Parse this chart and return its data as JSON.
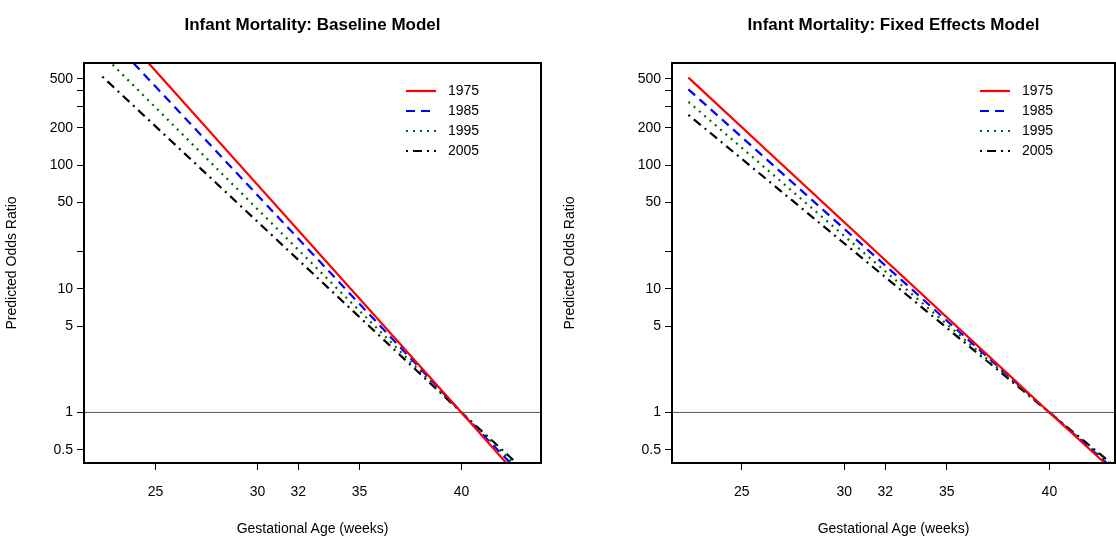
{
  "chart_data": [
    {
      "type": "line",
      "title": "Infant Mortality: Baseline Model",
      "xlabel": "Gestational Age (weeks)",
      "ylabel": "Predicted Odds Ratio",
      "log": "y",
      "grid": false,
      "legend": "top right",
      "marker": "none",
      "xlim": [
        21.5,
        43.9
      ],
      "xticks": [
        25,
        30,
        32,
        35,
        40
      ],
      "ylim": [
        0.39,
        670
      ],
      "yticks": [
        0.5,
        1,
        5,
        10,
        {
          "value": 20,
          "label": null
        },
        50,
        100,
        200,
        {
          "value": 300,
          "label": null
        },
        {
          "value": 400,
          "label": null
        },
        500
      ],
      "ref_lines": [
        {
          "axis": "y",
          "value": 1,
          "color": "#555555"
        }
      ],
      "series": [
        {
          "name": "1975",
          "color": "#ff0000",
          "line_style": "solid",
          "x": [
            24.66,
            40,
            42.2
          ],
          "values": [
            670,
            1,
            0.39
          ]
        },
        {
          "name": "1985",
          "color": "#0000ff",
          "line_style": "dashed",
          "x": [
            23.92,
            40,
            42.4
          ],
          "values": [
            670,
            1,
            0.39
          ]
        },
        {
          "name": "1995",
          "color": "#006400",
          "line_style": "dotted",
          "x": [
            22.9,
            40,
            42.55
          ],
          "values": [
            650,
            1,
            0.39
          ]
        },
        {
          "name": "2005",
          "color": "#000000",
          "line_style": "dashdot",
          "x": [
            22.4,
            40,
            42.7
          ],
          "values": [
            520,
            1,
            0.39
          ]
        }
      ]
    },
    {
      "type": "line",
      "title": "Infant Mortality: Fixed Effects Model",
      "xlabel": "Gestational Age (weeks)",
      "ylabel": "Predicted Odds Ratio",
      "log": "y",
      "grid": false,
      "legend": "top right",
      "marker": "none",
      "xlim": [
        21.6,
        43.2
      ],
      "xticks": [
        25,
        30,
        32,
        35,
        40
      ],
      "ylim": [
        0.39,
        670
      ],
      "yticks": [
        0.5,
        1,
        5,
        10,
        {
          "value": 20,
          "label": null
        },
        50,
        100,
        200,
        {
          "value": 300,
          "label": null
        },
        {
          "value": 400,
          "label": null
        },
        500
      ],
      "ref_lines": [
        {
          "axis": "y",
          "value": 1,
          "color": "#555555"
        }
      ],
      "series": [
        {
          "name": "1975",
          "color": "#ff0000",
          "line_style": "solid",
          "x": [
            22.4,
            40,
            42.7
          ],
          "values": [
            510,
            1,
            0.39
          ]
        },
        {
          "name": "1985",
          "color": "#0000ff",
          "line_style": "dashed",
          "x": [
            22.4,
            40,
            42.8
          ],
          "values": [
            410,
            1,
            0.39
          ]
        },
        {
          "name": "1995",
          "color": "#006400",
          "line_style": "dotted",
          "x": [
            22.4,
            40,
            42.9
          ],
          "values": [
            325,
            1,
            0.39
          ]
        },
        {
          "name": "2005",
          "color": "#000000",
          "line_style": "dashdot",
          "x": [
            22.4,
            40,
            43.0
          ],
          "values": [
            255,
            1,
            0.39
          ]
        }
      ]
    }
  ]
}
